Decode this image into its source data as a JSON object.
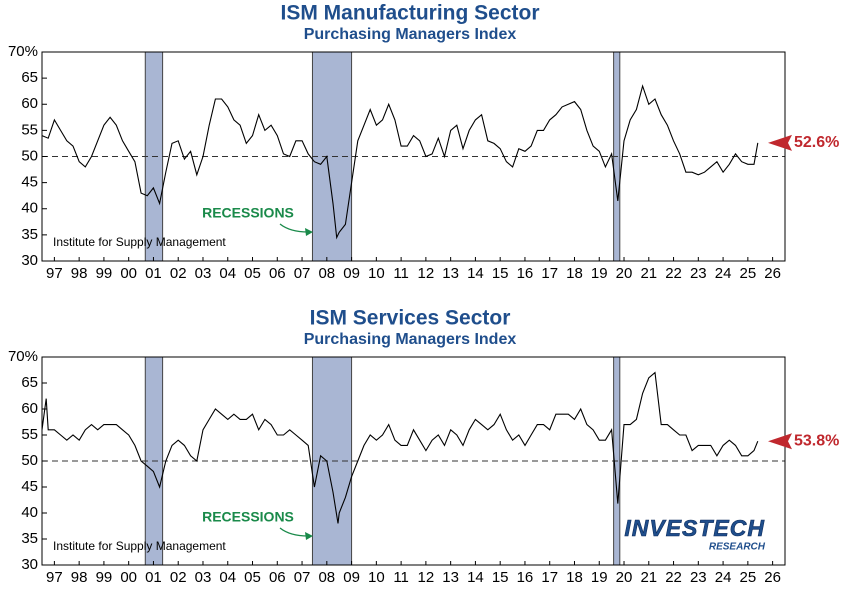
{
  "chart_data": [
    {
      "type": "line",
      "title": "ISM Manufacturing Sector",
      "subtitle": "Purchasing Managers Index",
      "source": "Institute for Supply Management",
      "annotation": "RECESSIONS",
      "color": "#000000",
      "x": [
        1997,
        1997.25,
        1997.5,
        1997.75,
        1998,
        1998.25,
        1998.5,
        1998.75,
        1999,
        1999.25,
        1999.5,
        1999.75,
        2000,
        2000.25,
        2000.5,
        2000.75,
        2001,
        2001.25,
        2001.5,
        2001.75,
        2002,
        2002.25,
        2002.5,
        2002.75,
        2003,
        2003.25,
        2003.5,
        2003.75,
        2004,
        2004.25,
        2004.5,
        2004.75,
        2005,
        2005.25,
        2005.5,
        2005.75,
        2006,
        2006.25,
        2006.5,
        2006.75,
        2007,
        2007.25,
        2007.5,
        2007.75,
        2008,
        2008.25,
        2008.5,
        2008.75,
        2008.9,
        2009,
        2009.25,
        2009.5,
        2009.75,
        2010,
        2010.25,
        2010.5,
        2010.75,
        2011,
        2011.25,
        2011.5,
        2011.75,
        2012,
        2012.25,
        2012.5,
        2012.75,
        2013,
        2013.25,
        2013.5,
        2013.75,
        2014,
        2014.25,
        2014.5,
        2014.75,
        2015,
        2015.25,
        2015.5,
        2015.75,
        2016,
        2016.25,
        2016.5,
        2016.75,
        2017,
        2017.25,
        2017.5,
        2017.75,
        2018,
        2018.25,
        2018.5,
        2018.75,
        2019,
        2019.25,
        2019.5,
        2019.75,
        2020,
        2020.25,
        2020.5,
        2020.75,
        2021,
        2021.25,
        2021.5,
        2021.75,
        2022,
        2022.25,
        2022.5,
        2022.75,
        2023,
        2023.25,
        2023.5,
        2023.75,
        2024,
        2024.25,
        2024.5,
        2024.75,
        2025,
        2025.25,
        2025.5,
        2025.75,
        2025.9
      ],
      "values": [
        54,
        53.5,
        57,
        55,
        53,
        52,
        49,
        48,
        50,
        53,
        56,
        57.5,
        56,
        53,
        51,
        49,
        43,
        42.5,
        44,
        41,
        47,
        52.5,
        53,
        49.5,
        51,
        46.5,
        50,
        56,
        61,
        61,
        59.5,
        57,
        56,
        52.5,
        54,
        58,
        55,
        56,
        54,
        50.5,
        50,
        53,
        53,
        50.5,
        49,
        48.5,
        50,
        41,
        34.5,
        35.5,
        37,
        45,
        53,
        56,
        59,
        56,
        57,
        60,
        57,
        52,
        52,
        54,
        53,
        50,
        50.5,
        53.5,
        50,
        55,
        56,
        51.5,
        55,
        57,
        58,
        53,
        52.5,
        51.5,
        49,
        48,
        51.5,
        51,
        52,
        55,
        55,
        57,
        58,
        59.5,
        60,
        60.5,
        59,
        55,
        52,
        51,
        48,
        50.5,
        41.5,
        53,
        57,
        59,
        63.5,
        60,
        61,
        58,
        56,
        53,
        50.5,
        47,
        47,
        46.5,
        47,
        48,
        49,
        47,
        48.5,
        50.5,
        49,
        48.5,
        48.5,
        52.6
      ],
      "callout": {
        "value": 52.6,
        "label": "52.6%"
      },
      "reference_line": 50,
      "recessions": [
        [
          2001.17,
          2001.87
        ],
        [
          2007.92,
          2009.5
        ],
        [
          2020.08,
          2020.33
        ]
      ],
      "xlim": [
        1997,
        2027
      ],
      "ylim": [
        30,
        70
      ],
      "yticks": [
        30,
        35,
        40,
        45,
        50,
        55,
        60,
        65,
        {
          "value": 70,
          "label": "70%"
        }
      ],
      "xticks": [
        {
          "value": 1997.5,
          "label": "97"
        },
        {
          "value": 1998.5,
          "label": "98"
        },
        {
          "value": 1999.5,
          "label": "99"
        },
        {
          "value": 2000.5,
          "label": "00"
        },
        {
          "value": 2001.5,
          "label": "01"
        },
        {
          "value": 2002.5,
          "label": "02"
        },
        {
          "value": 2003.5,
          "label": "03"
        },
        {
          "value": 2004.5,
          "label": "04"
        },
        {
          "value": 2005.5,
          "label": "05"
        },
        {
          "value": 2006.5,
          "label": "06"
        },
        {
          "value": 2007.5,
          "label": "07"
        },
        {
          "value": 2008.5,
          "label": "08"
        },
        {
          "value": 2009.5,
          "label": "09"
        },
        {
          "value": 2010.5,
          "label": "10"
        },
        {
          "value": 2011.5,
          "label": "11"
        },
        {
          "value": 2012.5,
          "label": "12"
        },
        {
          "value": 2013.5,
          "label": "13"
        },
        {
          "value": 2014.5,
          "label": "14"
        },
        {
          "value": 2015.5,
          "label": "15"
        },
        {
          "value": 2016.5,
          "label": "16"
        },
        {
          "value": 2017.5,
          "label": "17"
        },
        {
          "value": 2018.5,
          "label": "18"
        },
        {
          "value": 2019.5,
          "label": "19"
        },
        {
          "value": 2020.5,
          "label": "20"
        },
        {
          "value": 2021.5,
          "label": "21"
        },
        {
          "value": 2022.5,
          "label": "22"
        },
        {
          "value": 2023.5,
          "label": "23"
        },
        {
          "value": 2024.5,
          "label": "24"
        },
        {
          "value": 2025.5,
          "label": "25"
        },
        {
          "value": 2026.5,
          "label": "26"
        }
      ]
    },
    {
      "type": "line",
      "title": "ISM Services Sector",
      "subtitle": "Purchasing Managers Index",
      "source": "Institute for Supply Management",
      "annotation": "RECESSIONS",
      "color": "#000000",
      "x": [
        1997,
        1997.17,
        1997.25,
        1997.5,
        1997.75,
        1998,
        1998.25,
        1998.5,
        1998.75,
        1999,
        1999.25,
        1999.5,
        1999.75,
        2000,
        2000.25,
        2000.5,
        2000.75,
        2001,
        2001.25,
        2001.5,
        2001.75,
        2002,
        2002.25,
        2002.5,
        2002.75,
        2003,
        2003.25,
        2003.5,
        2003.75,
        2004,
        2004.25,
        2004.5,
        2004.75,
        2005,
        2005.25,
        2005.5,
        2005.75,
        2006,
        2006.25,
        2006.5,
        2006.75,
        2007,
        2007.25,
        2007.5,
        2007.75,
        2008,
        2008.25,
        2008.5,
        2008.75,
        2008.95,
        2009,
        2009.25,
        2009.5,
        2009.75,
        2010,
        2010.25,
        2010.5,
        2010.75,
        2011,
        2011.25,
        2011.5,
        2011.75,
        2012,
        2012.25,
        2012.5,
        2012.75,
        2013,
        2013.25,
        2013.5,
        2013.75,
        2014,
        2014.25,
        2014.5,
        2014.75,
        2015,
        2015.25,
        2015.5,
        2015.75,
        2016,
        2016.25,
        2016.5,
        2016.75,
        2017,
        2017.25,
        2017.5,
        2017.75,
        2018,
        2018.25,
        2018.5,
        2018.75,
        2019,
        2019.25,
        2019.5,
        2019.75,
        2020,
        2020.25,
        2020.5,
        2020.75,
        2021,
        2021.25,
        2021.5,
        2021.75,
        2022,
        2022.25,
        2022.5,
        2022.75,
        2023,
        2023.25,
        2023.5,
        2023.75,
        2024,
        2024.25,
        2024.5,
        2024.75,
        2025,
        2025.25,
        2025.5,
        2025.75,
        2025.9
      ],
      "values": [
        56,
        62,
        56,
        56,
        55,
        54,
        55,
        54,
        56,
        57,
        56,
        57,
        57,
        57,
        56,
        55,
        53,
        50,
        49,
        48,
        45,
        50,
        53,
        54,
        53,
        51,
        50,
        56,
        58,
        60,
        59,
        58,
        59,
        58,
        58,
        59,
        56,
        58,
        57,
        55,
        55,
        56,
        55,
        54,
        53,
        45,
        51,
        50,
        44,
        38,
        40,
        43,
        47,
        50,
        53,
        55,
        54,
        55,
        57,
        54,
        53,
        53,
        56,
        54,
        52,
        54,
        55,
        53,
        56,
        55,
        53,
        56,
        58,
        57,
        56,
        57,
        59,
        56,
        54,
        55,
        53,
        55,
        57,
        57,
        56,
        59,
        59,
        59,
        58,
        60,
        57,
        56,
        54,
        54,
        56,
        41.8,
        57,
        57,
        58,
        63,
        66,
        67,
        57,
        57,
        56,
        55,
        55,
        52,
        53,
        53,
        53,
        51,
        53,
        54,
        53,
        51,
        51,
        52,
        53.8
      ],
      "callout": {
        "value": 53.8,
        "label": "53.8%"
      },
      "reference_line": 50,
      "recessions": [
        [
          2001.17,
          2001.87
        ],
        [
          2007.92,
          2009.5
        ],
        [
          2020.08,
          2020.33
        ]
      ],
      "xlim": [
        1997,
        2027
      ],
      "ylim": [
        30,
        70
      ],
      "yticks": [
        30,
        35,
        40,
        45,
        50,
        55,
        60,
        65,
        {
          "value": 70,
          "label": "70%"
        }
      ],
      "xticks": [
        {
          "value": 1997.5,
          "label": "97"
        },
        {
          "value": 1998.5,
          "label": "98"
        },
        {
          "value": 1999.5,
          "label": "99"
        },
        {
          "value": 2000.5,
          "label": "00"
        },
        {
          "value": 2001.5,
          "label": "01"
        },
        {
          "value": 2002.5,
          "label": "02"
        },
        {
          "value": 2003.5,
          "label": "03"
        },
        {
          "value": 2004.5,
          "label": "04"
        },
        {
          "value": 2005.5,
          "label": "05"
        },
        {
          "value": 2006.5,
          "label": "06"
        },
        {
          "value": 2007.5,
          "label": "07"
        },
        {
          "value": 2008.5,
          "label": "08"
        },
        {
          "value": 2009.5,
          "label": "09"
        },
        {
          "value": 2010.5,
          "label": "10"
        },
        {
          "value": 2011.5,
          "label": "11"
        },
        {
          "value": 2012.5,
          "label": "12"
        },
        {
          "value": 2013.5,
          "label": "13"
        },
        {
          "value": 2014.5,
          "label": "14"
        },
        {
          "value": 2015.5,
          "label": "15"
        },
        {
          "value": 2016.5,
          "label": "16"
        },
        {
          "value": 2017.5,
          "label": "17"
        },
        {
          "value": 2018.5,
          "label": "18"
        },
        {
          "value": 2019.5,
          "label": "19"
        },
        {
          "value": 2020.5,
          "label": "20"
        },
        {
          "value": 2021.5,
          "label": "21"
        },
        {
          "value": 2022.5,
          "label": "22"
        },
        {
          "value": 2023.5,
          "label": "23"
        },
        {
          "value": 2024.5,
          "label": "24"
        },
        {
          "value": 2025.5,
          "label": "25"
        },
        {
          "value": 2026.5,
          "label": "26"
        }
      ]
    }
  ],
  "logo": {
    "name": "INVESTECH",
    "sub": "RESEARCH"
  }
}
